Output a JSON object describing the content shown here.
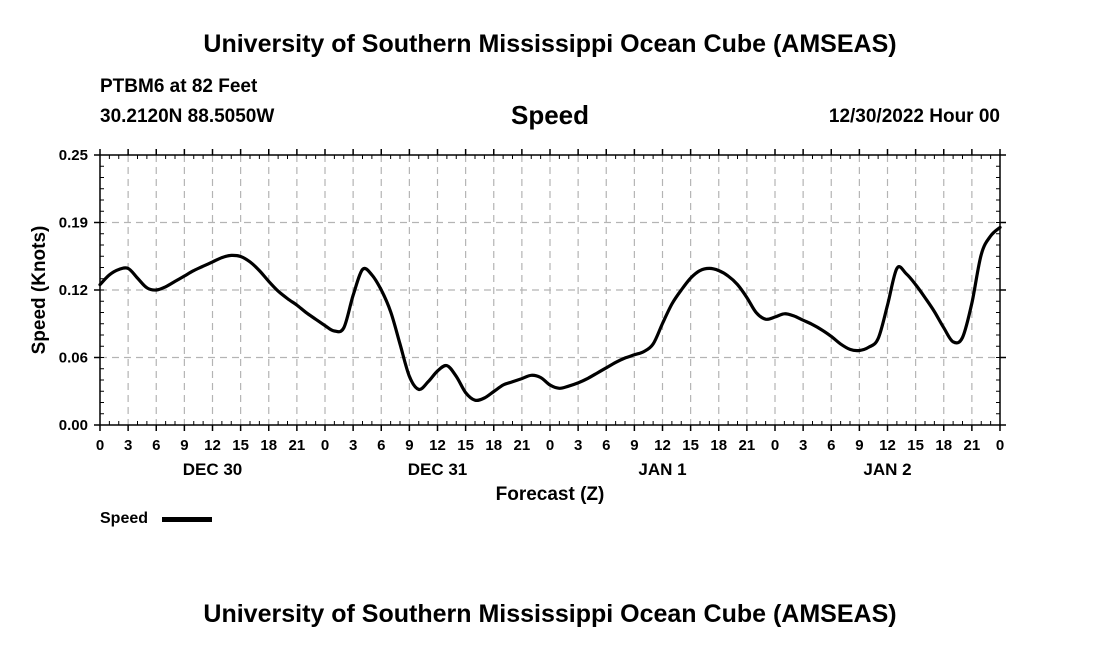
{
  "header": {
    "title": "University of Southern Mississippi Ocean Cube (AMSEAS)",
    "station": "PTBM6 at 82 Feet",
    "coords": "30.2120N  88.5050W",
    "variable": "Speed",
    "datetime": "12/30/2022 Hour 00"
  },
  "footer": {
    "title": "University of Southern Mississippi Ocean Cube (AMSEAS)"
  },
  "legend": {
    "label": "Speed"
  },
  "colors": {
    "line": "#000000",
    "grid": "#b4b4b4"
  },
  "chart_data": {
    "type": "line",
    "title": "Speed",
    "xlabel": "Forecast (Z)",
    "ylabel": "Speed (Knots)",
    "ylim": [
      0,
      0.25
    ],
    "yticks": [
      "0.00",
      "0.06",
      "0.12",
      "0.19",
      "0.25"
    ],
    "ytick_values": [
      0,
      0.0625,
      0.125,
      0.1875,
      0.25
    ],
    "xlim": [
      0,
      96
    ],
    "xtick_labels": [
      "0",
      "3",
      "6",
      "9",
      "12",
      "15",
      "18",
      "21",
      "0",
      "3",
      "6",
      "9",
      "12",
      "15",
      "18",
      "21",
      "0",
      "3",
      "6",
      "9",
      "12",
      "15",
      "18",
      "21",
      "0",
      "3",
      "6",
      "9",
      "12",
      "15",
      "18",
      "21",
      "0"
    ],
    "day_labels": [
      {
        "label": "DEC 30",
        "hour": 12
      },
      {
        "label": "DEC 31",
        "hour": 36
      },
      {
        "label": "JAN 1",
        "hour": 60
      },
      {
        "label": "JAN 2",
        "hour": 84
      }
    ],
    "grid": true,
    "series": [
      {
        "name": "Speed",
        "x": [
          0,
          1,
          2,
          3,
          4,
          5,
          6,
          7,
          8,
          9,
          10,
          11,
          12,
          13,
          14,
          15,
          16,
          17,
          18,
          19,
          20,
          21,
          22,
          23,
          24,
          25,
          26,
          27,
          28,
          29,
          30,
          31,
          32,
          33,
          34,
          35,
          36,
          37,
          38,
          39,
          40,
          41,
          42,
          43,
          44,
          45,
          46,
          47,
          48,
          49,
          50,
          51,
          52,
          53,
          54,
          55,
          56,
          57,
          58,
          59,
          60,
          61,
          62,
          63,
          64,
          65,
          66,
          67,
          68,
          69,
          70,
          71,
          72,
          73,
          74,
          75,
          76,
          77,
          78,
          79,
          80,
          81,
          82,
          83,
          84,
          85,
          86,
          87,
          88,
          89,
          90,
          91,
          92,
          93,
          94,
          95,
          96
        ],
        "values": [
          0.13,
          0.139,
          0.144,
          0.145,
          0.136,
          0.127,
          0.125,
          0.128,
          0.133,
          0.138,
          0.143,
          0.147,
          0.151,
          0.155,
          0.157,
          0.156,
          0.151,
          0.143,
          0.133,
          0.124,
          0.117,
          0.111,
          0.104,
          0.098,
          0.092,
          0.087,
          0.09,
          0.12,
          0.144,
          0.139,
          0.125,
          0.105,
          0.075,
          0.045,
          0.033,
          0.04,
          0.05,
          0.055,
          0.045,
          0.03,
          0.023,
          0.025,
          0.031,
          0.037,
          0.04,
          0.043,
          0.046,
          0.044,
          0.037,
          0.034,
          0.036,
          0.039,
          0.043,
          0.048,
          0.053,
          0.058,
          0.062,
          0.065,
          0.068,
          0.075,
          0.094,
          0.112,
          0.125,
          0.136,
          0.143,
          0.145,
          0.143,
          0.138,
          0.13,
          0.118,
          0.104,
          0.098,
          0.1,
          0.103,
          0.101,
          0.097,
          0.093,
          0.088,
          0.082,
          0.075,
          0.07,
          0.069,
          0.072,
          0.08,
          0.111,
          0.145,
          0.14,
          0.13,
          0.118,
          0.105,
          0.09,
          0.077,
          0.081,
          0.113,
          0.158,
          0.175,
          0.183
        ]
      }
    ]
  }
}
